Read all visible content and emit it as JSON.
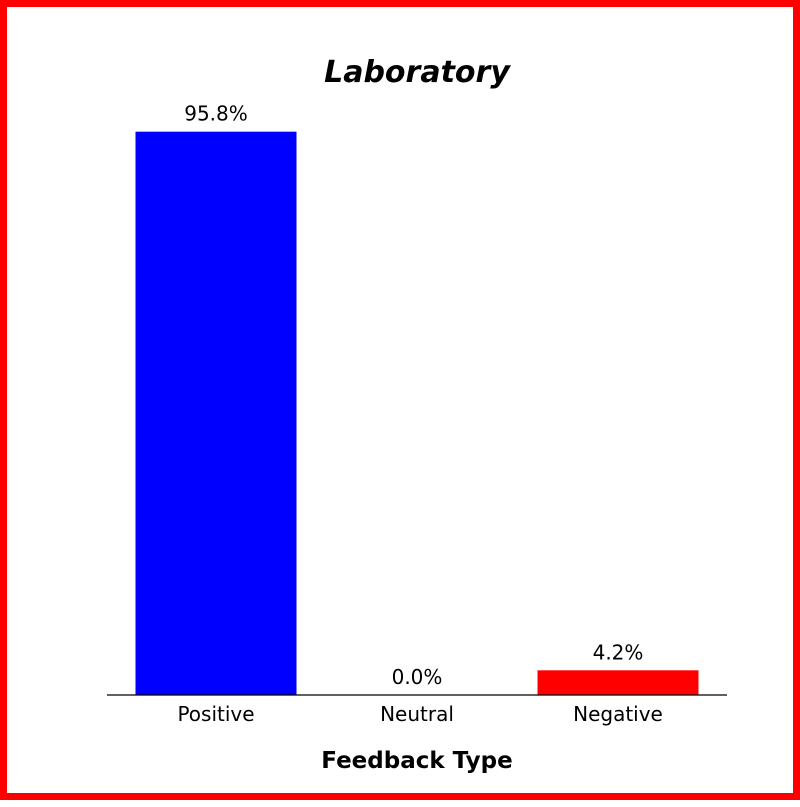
{
  "chart_data": {
    "type": "bar",
    "title": "Laboratory",
    "xlabel": "Feedback Type",
    "ylabel": "",
    "ylim": [
      0,
      100
    ],
    "grid": false,
    "categories": [
      "Positive",
      "Neutral",
      "Negative"
    ],
    "values": [
      95.8,
      0.0,
      4.2
    ],
    "value_labels": [
      "95.8%",
      "0.0%",
      "4.2%"
    ],
    "colors": [
      "#0000ff",
      "#ffffff",
      "#ff0000"
    ]
  },
  "colors": {
    "frame_border": "#ff0000",
    "background": "#ffffff",
    "text": "#000000"
  }
}
